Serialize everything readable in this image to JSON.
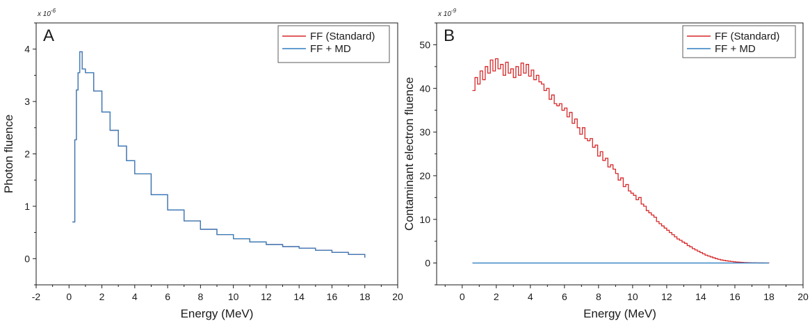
{
  "colors": {
    "standard": "#d62728",
    "md": "#2f7fc1",
    "axis": "#1a1a1a"
  },
  "chart_data": [
    {
      "type": "line",
      "panel_label": "A",
      "multiplier_label": "x 10",
      "multiplier_exp": "-6",
      "xlabel": "Energy (MeV)",
      "ylabel": "Photon fluence",
      "xlim": [
        -2,
        20
      ],
      "ylim": [
        -0.5,
        4.5
      ],
      "xticks": [
        -2,
        0,
        2,
        4,
        6,
        8,
        10,
        12,
        14,
        16,
        18,
        20
      ],
      "yticks": [
        0,
        1,
        2,
        3,
        4
      ],
      "legend_position": "top-right",
      "series": [
        {
          "name": "FF (Standard)",
          "color_key": "standard",
          "x": [
            0.2,
            0.35,
            0.45,
            0.55,
            0.65,
            0.8,
            1.0,
            1.5,
            2.0,
            2.5,
            3.0,
            3.5,
            4.0,
            5.0,
            6.0,
            7.0,
            8.0,
            9.0,
            10.0,
            11.0,
            12.0,
            13.0,
            14.0,
            15.0,
            16.0,
            17.0,
            18.0
          ],
          "y": [
            0.7,
            2.27,
            3.22,
            3.55,
            3.95,
            3.62,
            3.55,
            3.2,
            2.8,
            2.45,
            2.15,
            1.87,
            1.62,
            1.22,
            0.93,
            0.72,
            0.56,
            0.46,
            0.38,
            0.32,
            0.27,
            0.23,
            0.2,
            0.16,
            0.12,
            0.08,
            0.02
          ]
        },
        {
          "name": "FF + MD",
          "color_key": "md",
          "x": [
            0.2,
            0.35,
            0.45,
            0.55,
            0.65,
            0.8,
            1.0,
            1.5,
            2.0,
            2.5,
            3.0,
            3.5,
            4.0,
            5.0,
            6.0,
            7.0,
            8.0,
            9.0,
            10.0,
            11.0,
            12.0,
            13.0,
            14.0,
            15.0,
            16.0,
            17.0,
            18.0
          ],
          "y": [
            0.7,
            2.27,
            3.22,
            3.55,
            3.95,
            3.62,
            3.55,
            3.2,
            2.8,
            2.45,
            2.15,
            1.87,
            1.62,
            1.22,
            0.93,
            0.72,
            0.56,
            0.46,
            0.38,
            0.32,
            0.27,
            0.23,
            0.2,
            0.16,
            0.12,
            0.08,
            0.02
          ]
        }
      ]
    },
    {
      "type": "line",
      "panel_label": "B",
      "multiplier_label": "x 10",
      "multiplier_exp": "-9",
      "xlabel": "Energy (MeV)",
      "ylabel": "Contaminant electron fluence",
      "xlim": [
        -1.5,
        20
      ],
      "ylim": [
        -5,
        55
      ],
      "xticks": [
        0,
        2,
        4,
        6,
        8,
        10,
        12,
        14,
        16,
        18,
        20
      ],
      "yticks": [
        0,
        10,
        20,
        30,
        40,
        50
      ],
      "legend_position": "top-right",
      "series": [
        {
          "name": "FF (Standard)",
          "color_key": "standard",
          "x": [
            0.6,
            0.75,
            0.9,
            1.05,
            1.2,
            1.35,
            1.5,
            1.65,
            1.8,
            1.95,
            2.1,
            2.25,
            2.4,
            2.55,
            2.7,
            2.85,
            3.0,
            3.15,
            3.3,
            3.45,
            3.6,
            3.75,
            3.9,
            4.05,
            4.2,
            4.35,
            4.5,
            4.65,
            4.8,
            4.95,
            5.1,
            5.25,
            5.4,
            5.55,
            5.7,
            5.85,
            6.0,
            6.15,
            6.3,
            6.45,
            6.6,
            6.75,
            6.9,
            7.05,
            7.2,
            7.35,
            7.5,
            7.65,
            7.8,
            7.95,
            8.1,
            8.25,
            8.4,
            8.55,
            8.7,
            8.85,
            9.0,
            9.15,
            9.3,
            9.45,
            9.6,
            9.75,
            9.9,
            10.05,
            10.2,
            10.35,
            10.5,
            10.65,
            10.8,
            10.95,
            11.1,
            11.25,
            11.4,
            11.55,
            11.7,
            11.85,
            12.0,
            12.15,
            12.3,
            12.45,
            12.6,
            12.75,
            12.9,
            13.05,
            13.2,
            13.35,
            13.5,
            13.65,
            13.8,
            13.95,
            14.1,
            14.25,
            14.4,
            14.55,
            14.7,
            14.85,
            15.0,
            15.15,
            15.3,
            15.45,
            15.6,
            15.75,
            15.9,
            16.05,
            16.2,
            16.35,
            16.5,
            16.65,
            16.8,
            16.95,
            17.1,
            17.25,
            17.4,
            17.55,
            17.7,
            17.85,
            18.0
          ],
          "y": [
            39.5,
            42.5,
            41.0,
            44.0,
            42.0,
            45.0,
            43.5,
            46.5,
            44.0,
            46.8,
            44.5,
            45.5,
            43.0,
            46.0,
            43.5,
            44.5,
            42.5,
            45.0,
            43.0,
            45.8,
            43.5,
            45.5,
            42.8,
            44.2,
            42.0,
            43.0,
            41.5,
            41.0,
            39.5,
            40.0,
            37.5,
            38.5,
            36.5,
            36.0,
            36.5,
            35.0,
            35.5,
            33.5,
            34.5,
            32.0,
            33.0,
            31.0,
            29.5,
            31.0,
            28.5,
            28.0,
            28.5,
            26.5,
            27.0,
            24.5,
            25.5,
            23.5,
            24.0,
            22.0,
            22.5,
            21.5,
            20.5,
            19.0,
            19.5,
            17.5,
            18.0,
            16.5,
            16.0,
            15.5,
            14.5,
            15.0,
            13.5,
            13.0,
            12.0,
            11.5,
            11.0,
            10.5,
            9.5,
            9.0,
            8.5,
            8.0,
            7.5,
            7.0,
            6.5,
            6.0,
            5.5,
            5.2,
            4.8,
            4.5,
            4.0,
            3.7,
            3.3,
            3.0,
            2.7,
            2.4,
            2.1,
            1.8,
            1.6,
            1.4,
            1.2,
            1.0,
            0.85,
            0.7,
            0.6,
            0.5,
            0.42,
            0.35,
            0.28,
            0.22,
            0.18,
            0.14,
            0.11,
            0.08,
            0.06,
            0.05,
            0.04,
            0.03,
            0.02,
            0.02,
            0.01,
            0.01,
            0.0
          ]
        },
        {
          "name": "FF + MD",
          "color_key": "md",
          "x": [
            0.6,
            2.0,
            4.0,
            6.0,
            8.0,
            10.0,
            12.0,
            14.0,
            16.0,
            18.0
          ],
          "y": [
            0,
            0,
            0,
            0,
            0,
            0,
            0,
            0,
            0,
            0
          ]
        }
      ]
    }
  ]
}
